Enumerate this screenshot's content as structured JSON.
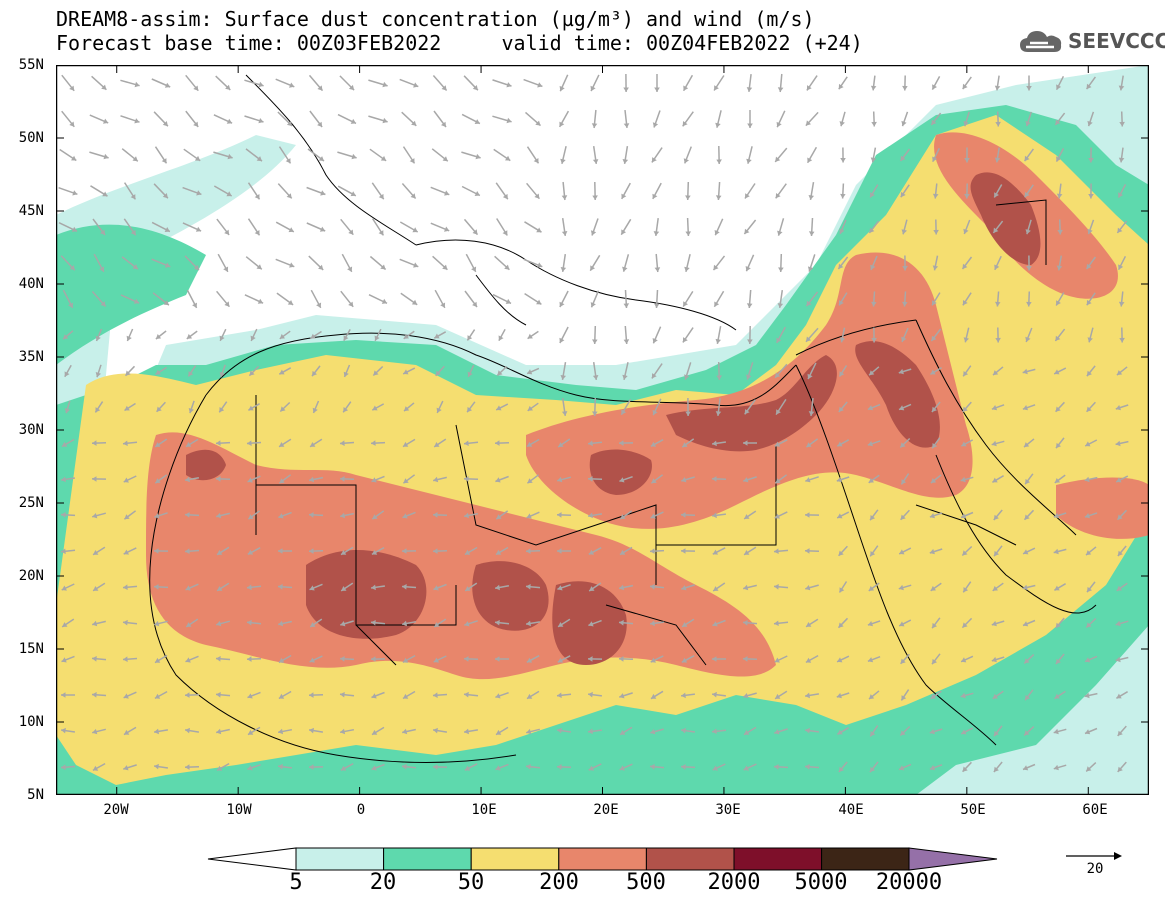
{
  "title": {
    "line1": "DREAM8-assim: Surface dust concentration (µg/m³) and wind (m/s)",
    "line2": "Forecast base time: 00Z03FEB2022     valid time: 00Z04FEB2022 (+24)"
  },
  "logo": {
    "text": "SEEVCCC",
    "icon": "cloud-icon"
  },
  "axes": {
    "lat_ticks": [
      "55N",
      "50N",
      "45N",
      "40N",
      "35N",
      "30N",
      "25N",
      "20N",
      "15N",
      "10N",
      "5N"
    ],
    "lon_ticks": [
      "20W",
      "10W",
      "0",
      "10E",
      "20E",
      "30E",
      "40E",
      "50E",
      "60E"
    ],
    "lat_range": [
      5,
      55
    ],
    "lon_range": [
      -25,
      65
    ]
  },
  "colorbar": {
    "labels": [
      "5",
      "20",
      "50",
      "200",
      "500",
      "2000",
      "5000",
      "20000"
    ],
    "colors": [
      "#c8f0ea",
      "#5ed9ad",
      "#f5de70",
      "#e8866b",
      "#b1524a",
      "#7e0f2a",
      "#3c2516",
      "#9570a8"
    ]
  },
  "wind_reference": {
    "label": "20"
  },
  "colors": {
    "land": "#ffffff",
    "border": "#000000",
    "arrow": "#a8a8a8"
  }
}
